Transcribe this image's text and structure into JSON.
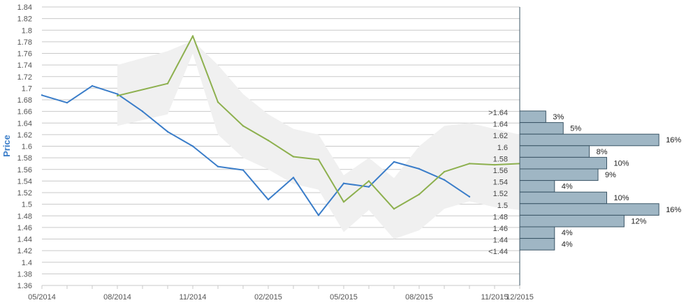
{
  "chart_data": {
    "type": "line",
    "ylabel": "Price",
    "ylim": [
      1.36,
      1.84
    ],
    "y_ticks": [
      "1.36",
      "1.38",
      "1.4",
      "1.42",
      "1.44",
      "1.46",
      "1.48",
      "1.5",
      "1.52",
      "1.54",
      "1.56",
      "1.58",
      "1.6",
      "1.62",
      "1.64",
      "1.66",
      "1.68",
      "1.7",
      "1.72",
      "1.74",
      "1.76",
      "1.78",
      "1.8",
      "1.82",
      "1.84"
    ],
    "x_ticks": [
      "05/2014",
      "08/2014",
      "11/2014",
      "02/2015",
      "05/2015",
      "08/2015",
      "11/2015",
      "12/2015"
    ],
    "grid": true,
    "colors": {
      "history": "#3a7dc9",
      "forecast": "#8db04e",
      "band": "#f0f0f0",
      "bar_fill": "#9fb6c4",
      "bar_stroke": "#3b5566",
      "axis": "#3b5566"
    },
    "series": [
      {
        "x": [
          "05/2014",
          "06/2014",
          "07/2014",
          "08/2014",
          "09/2014",
          "10/2014",
          "11/2014",
          "12/2014",
          "01/2015",
          "02/2015",
          "03/2015",
          "04/2015",
          "05/2015",
          "06/2015",
          "07/2015",
          "08/2015",
          "09/2015",
          "10/2015"
        ],
        "values": [
          1.688,
          1.675,
          1.704,
          1.69,
          1.66,
          1.625,
          1.6,
          1.565,
          1.559,
          1.508,
          1.546,
          1.481,
          1.536,
          1.53,
          1.573,
          1.561,
          1.542,
          1.513
        ]
      },
      {
        "x": [
          "08/2014",
          "10/2014",
          "11/2014",
          "12/2014",
          "01/2015",
          "02/2015",
          "03/2015",
          "04/2015",
          "05/2015",
          "06/2015",
          "07/2015",
          "08/2015",
          "09/2015",
          "10/2015",
          "11/2015",
          "12/2015"
        ],
        "values": [
          1.687,
          1.708,
          1.79,
          1.676,
          1.635,
          1.61,
          1.582,
          1.577,
          1.504,
          1.54,
          1.492,
          1.517,
          1.556,
          1.57,
          1.568,
          1.57
        ]
      }
    ],
    "band": {
      "x": [
        "08/2014",
        "10/2014",
        "11/2014",
        "12/2014",
        "01/2015",
        "02/2015",
        "03/2015",
        "04/2015",
        "05/2015",
        "06/2015",
        "07/2015",
        "08/2015",
        "09/2015",
        "10/2015",
        "11/2015",
        "12/2015"
      ],
      "upper": [
        1.74,
        1.764,
        1.782,
        1.74,
        1.69,
        1.655,
        1.63,
        1.62,
        1.55,
        1.58,
        1.545,
        1.6,
        1.635,
        1.64,
        1.63,
        1.62
      ],
      "lower": [
        1.635,
        1.655,
        1.76,
        1.62,
        1.58,
        1.56,
        1.535,
        1.525,
        1.452,
        1.49,
        1.44,
        1.455,
        1.492,
        1.505,
        1.495,
        1.49
      ]
    },
    "distribution": {
      "labels": [
        ">1.64",
        "1.64",
        "1.62",
        "1.6",
        "1.58",
        "1.56",
        "1.54",
        "1.52",
        "1.5",
        "1.48",
        "1.46",
        "1.44",
        "<1.44"
      ],
      "values": [
        3,
        5,
        16,
        8,
        10,
        9,
        4,
        10,
        16,
        12,
        4,
        4,
        null
      ],
      "value_labels": [
        "3%",
        "5%",
        "16%",
        "8%",
        "10%",
        "9%",
        "4%",
        "10%",
        "16%",
        "12%",
        "4%",
        "4%",
        ""
      ]
    }
  }
}
